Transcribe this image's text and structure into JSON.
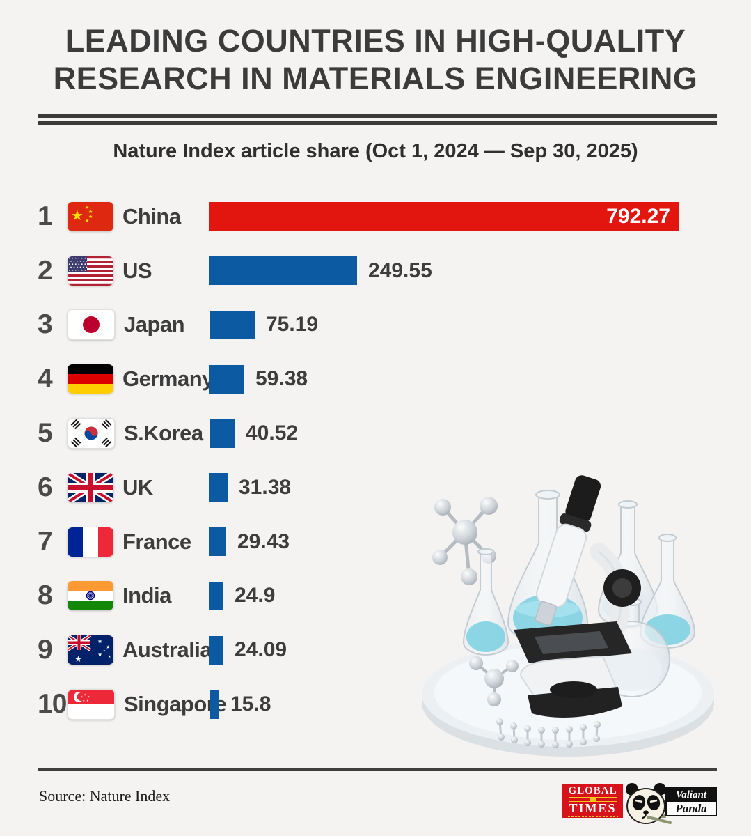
{
  "page": {
    "background_color": "#f4f3f1",
    "text_color": "#3b3b3b"
  },
  "header": {
    "title_lines": [
      "LEADING COUNTRIES IN HIGH-QUALITY",
      "RESEARCH IN MATERIALS ENGINEERING"
    ],
    "subtitle": "Nature Index article share (Oct 1, 2024 — Sep 30, 2025)"
  },
  "chart_data": {
    "type": "bar",
    "orientation": "horizontal",
    "title": "Leading countries in high-quality research in materials engineering",
    "period_label": "Nature Index article share (Oct 1, 2024 — Sep 30, 2025)",
    "value_axis": {
      "min": 0,
      "max": 792.27,
      "axis_visible": false,
      "gridlines": false
    },
    "categories": [
      "China",
      "US",
      "Japan",
      "Germany",
      "S.Korea",
      "UK",
      "France",
      "India",
      "Australia",
      "Singapore"
    ],
    "values": [
      792.27,
      249.55,
      75.19,
      59.38,
      40.52,
      31.38,
      29.43,
      24.9,
      24.09,
      15.8
    ],
    "colors": {
      "highlight_bar": "#e2150f",
      "default_bar": "#0b5aa2"
    },
    "rows": [
      {
        "rank": "1",
        "country": "China",
        "flag": "cn",
        "value": 792.27,
        "value_label": "792.27",
        "bar_color": "#e2150f",
        "label_inside": true
      },
      {
        "rank": "2",
        "country": "US",
        "flag": "us",
        "value": 249.55,
        "value_label": "249.55",
        "bar_color": "#0b5aa2",
        "label_inside": false
      },
      {
        "rank": "3",
        "country": "Japan",
        "flag": "jp",
        "value": 75.19,
        "value_label": "75.19",
        "bar_color": "#0b5aa2",
        "label_inside": false
      },
      {
        "rank": "4",
        "country": "Germany",
        "flag": "de",
        "value": 59.38,
        "value_label": "59.38",
        "bar_color": "#0b5aa2",
        "label_inside": false
      },
      {
        "rank": "5",
        "country": "S.Korea",
        "flag": "kr",
        "value": 40.52,
        "value_label": "40.52",
        "bar_color": "#0b5aa2",
        "label_inside": false
      },
      {
        "rank": "6",
        "country": "UK",
        "flag": "gb",
        "value": 31.38,
        "value_label": "31.38",
        "bar_color": "#0b5aa2",
        "label_inside": false
      },
      {
        "rank": "7",
        "country": "France",
        "flag": "fr",
        "value": 29.43,
        "value_label": "29.43",
        "bar_color": "#0b5aa2",
        "label_inside": false
      },
      {
        "rank": "8",
        "country": "India",
        "flag": "in",
        "value": 24.9,
        "value_label": "24.9",
        "bar_color": "#0b5aa2",
        "label_inside": false
      },
      {
        "rank": "9",
        "country": "Australia",
        "flag": "au",
        "value": 24.09,
        "value_label": "24.09",
        "bar_color": "#0b5aa2",
        "label_inside": false
      },
      {
        "rank": "10",
        "country": "Singapore",
        "flag": "sg",
        "value": 15.8,
        "value_label": "15.8",
        "bar_color": "#0b5aa2",
        "label_inside": false
      }
    ]
  },
  "illustration": {
    "name": "microscope-with-flasks-3d"
  },
  "footer": {
    "source": "Source: Nature Index",
    "logos": {
      "global_times": {
        "line1": "GLOBAL",
        "line2": "TIMES"
      },
      "valiant_panda": {
        "line1": "Valiant",
        "line2": "Panda"
      }
    }
  }
}
